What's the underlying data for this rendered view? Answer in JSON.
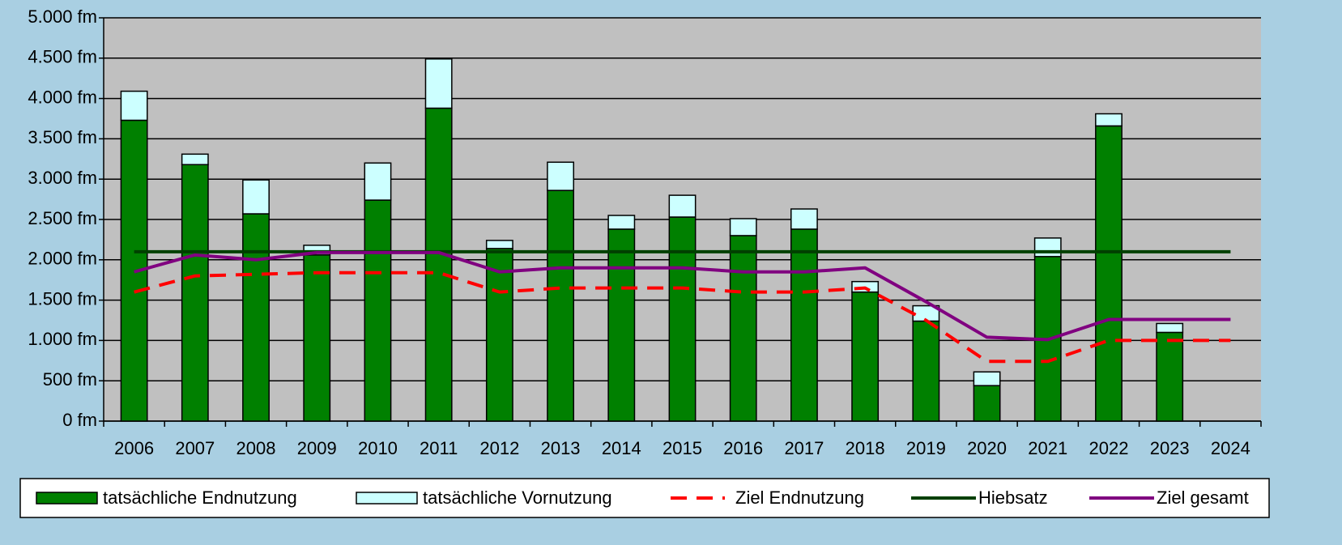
{
  "chart_data": {
    "type": "bar",
    "categories": [
      "2006",
      "2007",
      "2008",
      "2009",
      "2010",
      "2011",
      "2012",
      "2013",
      "2014",
      "2015",
      "2016",
      "2017",
      "2018",
      "2019",
      "2020",
      "2021",
      "2022",
      "2023",
      "2024"
    ],
    "series": [
      {
        "name": "tatsächliche Endnutzung",
        "style": "bar",
        "color": "#008000",
        "values": [
          3730,
          3180,
          2570,
          2060,
          2740,
          3880,
          2140,
          2860,
          2380,
          2530,
          2300,
          2380,
          1600,
          1240,
          440,
          2040,
          3660,
          1100,
          null
        ]
      },
      {
        "name": "tatsächliche Vornutzung",
        "style": "bar",
        "color": "#ccffff",
        "values": [
          360,
          130,
          420,
          120,
          460,
          610,
          100,
          350,
          170,
          270,
          210,
          250,
          130,
          190,
          170,
          230,
          150,
          110,
          null
        ]
      },
      {
        "name": "Ziel Endnutzung",
        "style": "dashed",
        "color": "#ff0000",
        "values": [
          1600,
          1800,
          1820,
          1840,
          1840,
          1840,
          1600,
          1650,
          1650,
          1650,
          1600,
          1600,
          1650,
          1250,
          740,
          740,
          1000,
          1000,
          1000
        ]
      },
      {
        "name": "Hiebsatz",
        "style": "line",
        "color": "#004000",
        "values": [
          2100,
          2100,
          2100,
          2100,
          2100,
          2100,
          2100,
          2100,
          2100,
          2100,
          2100,
          2100,
          2100,
          2100,
          2100,
          2100,
          2100,
          2100,
          2100
        ]
      },
      {
        "name": "Ziel gesamt",
        "style": "line",
        "color": "#800080",
        "values": [
          1850,
          2060,
          2000,
          2090,
          2090,
          2090,
          1850,
          1900,
          1900,
          1900,
          1850,
          1850,
          1900,
          1480,
          1040,
          1010,
          1260,
          1260,
          1260
        ]
      }
    ],
    "ylim": [
      0,
      5000
    ],
    "yticks": [
      {
        "value": 0,
        "label": "0 fm"
      },
      {
        "value": 500,
        "label": "500 fm"
      },
      {
        "value": 1000,
        "label": "1.000 fm"
      },
      {
        "value": 1500,
        "label": "1.500 fm"
      },
      {
        "value": 2000,
        "label": "2.000 fm"
      },
      {
        "value": 2500,
        "label": "2.500 fm"
      },
      {
        "value": 3000,
        "label": "3.000 fm"
      },
      {
        "value": 3500,
        "label": "3.500 fm"
      },
      {
        "value": 4000,
        "label": "4.000 fm"
      },
      {
        "value": 4500,
        "label": "4.500 fm"
      },
      {
        "value": 5000,
        "label": "5.000 fm"
      }
    ],
    "grid": true,
    "legend": "bottom"
  }
}
